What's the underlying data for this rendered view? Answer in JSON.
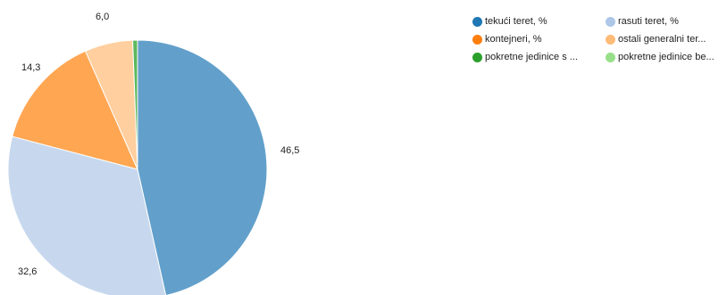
{
  "chart_data": {
    "type": "pie",
    "title": "",
    "slices": [
      {
        "name": "tekući teret, %",
        "legend_label": "tekući teret, %",
        "value": 46.5,
        "label": "46,5",
        "color": "#62a0cb",
        "legend_color": "#1f77b4"
      },
      {
        "name": "rasuti teret, %",
        "legend_label": "rasuti teret, %",
        "value": 32.6,
        "label": "32,6",
        "color": "#c7d8ee",
        "legend_color": "#aec7e8"
      },
      {
        "name": "kontejneri, %",
        "legend_label": "kontejneri, %",
        "value": 14.3,
        "label": "14,3",
        "color": "#ffa652",
        "legend_color": "#ff7f0e"
      },
      {
        "name": "ostali generalni ter...",
        "legend_label": "ostali generalni ter...",
        "value": 6.0,
        "label": "6,0",
        "color": "#ffcf9f",
        "legend_color": "#ffbb78"
      },
      {
        "name": "pokretne jedinice s ...",
        "legend_label": "pokretne jedinice s ...",
        "value": 0.6,
        "label": "",
        "color": "#5fb85f",
        "legend_color": "#2ca02c"
      },
      {
        "name": "pokretne jedinice be...",
        "legend_label": "pokretne jedinice be...",
        "value": 0.0,
        "label": "",
        "color": "#98df8a",
        "legend_color": "#98df8a"
      }
    ],
    "legend_placement": "top-right"
  }
}
